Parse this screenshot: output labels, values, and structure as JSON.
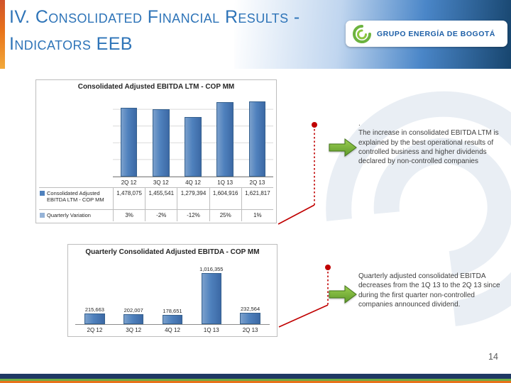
{
  "slide": {
    "title_line1": "IV. Consolidated Financial Results -",
    "title_line2": "Indicators EEB",
    "page_number": "14"
  },
  "logo": {
    "text": "GRUPO ENERGÍA DE BOGOTÁ",
    "icon": "green-swirl"
  },
  "notes": [
    {
      "bullet": ".",
      "text": "The increase in consolidated EBITDA LTM is explained by the best operational results of controlled business and higher dividends declared by non-controlled companies"
    },
    {
      "bullet": "",
      "text": "Quarterly adjusted consolidated EBITDA decreases from the 1Q 13 to the 2Q 13 since during the first quarter non-controlled companies announced dividend."
    }
  ],
  "colors": {
    "title_blue": "#2E74B8",
    "bar_fill": "#4F81BD",
    "bar_edge": "#36618E",
    "accent_red": "#C00000",
    "arrow_green_light": "#9BCE50",
    "arrow_green_dark": "#5E9A2B",
    "logo_green": "#6CB33F",
    "logo_blue": "#1D5FA7",
    "footer_navy": "#1F3864",
    "footer_green": "#6FAC46",
    "footer_orange": "#E8731A",
    "gridline": "#D9D9D9"
  },
  "chart_data": [
    {
      "type": "bar",
      "title": "Consolidated  Adjusted EBITDA LTM - COP MM",
      "categories": [
        "2Q 12",
        "3Q 12",
        "4Q 12",
        "1Q 13",
        "2Q 13"
      ],
      "series": [
        {
          "name": "Consolidated Adjusted EBITDA LTM - COP MM",
          "marker": "#4F81BD",
          "values": [
            1478075,
            1455541,
            1279394,
            1604916,
            1621817
          ],
          "labels": [
            "1,478,075",
            "1,455,541",
            "1,279,394",
            "1,604,916",
            "1,621,817"
          ]
        },
        {
          "name": "Quarterly Variation",
          "marker": "#95B3D7",
          "values": [
            0.03,
            -0.02,
            -0.12,
            0.25,
            0.01
          ],
          "labels": [
            "3%",
            "-2%",
            "-12%",
            "25%",
            "1%"
          ]
        }
      ],
      "ylim": [
        0,
        1800000
      ],
      "grid": true,
      "legend_position": "data-table-left"
    },
    {
      "type": "bar",
      "title": "Quarterly  Consolidated  Adjusted EBITDA - COP MM",
      "categories": [
        "2Q 12",
        "3Q 12",
        "4Q 12",
        "1Q 13",
        "2Q 13"
      ],
      "values": [
        215663,
        202007,
        178651,
        1016355,
        232564
      ],
      "labels": [
        "215,663",
        "202,007",
        "178,651",
        "1,016,355",
        "232,564"
      ],
      "ylim": [
        0,
        1100000
      ],
      "grid": false,
      "legend_position": "none"
    }
  ]
}
